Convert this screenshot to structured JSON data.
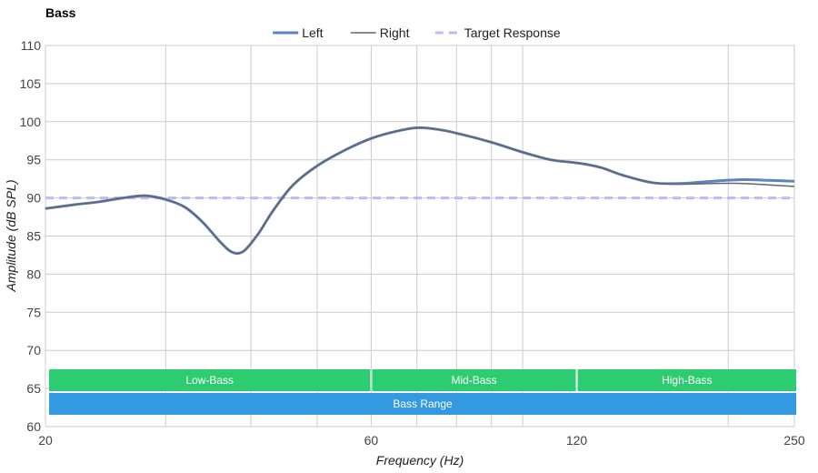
{
  "chart_data": {
    "type": "line",
    "title": "Bass",
    "xlabel": "Frequency (Hz)",
    "ylabel": "Amplitude (dB SPL)",
    "xscale": "log",
    "xlim": [
      20,
      250
    ],
    "ylim": [
      60,
      110
    ],
    "x_ticks": [
      20,
      60,
      120,
      250
    ],
    "y_ticks": [
      60,
      65,
      70,
      75,
      80,
      85,
      90,
      95,
      100,
      105,
      110
    ],
    "x_gridlines": [
      30,
      40,
      50,
      60,
      70,
      80,
      90,
      100,
      200
    ],
    "legend_position": "top-center",
    "series": [
      {
        "name": "Left",
        "color": "#5b84c4",
        "style": "solid-thick",
        "points": [
          [
            20,
            88.6
          ],
          [
            22,
            89.1
          ],
          [
            24,
            89.5
          ],
          [
            26,
            90.0
          ],
          [
            28,
            90.3
          ],
          [
            30,
            89.8
          ],
          [
            32,
            88.8
          ],
          [
            34,
            86.8
          ],
          [
            36,
            84.3
          ],
          [
            37.5,
            82.9
          ],
          [
            39,
            83.0
          ],
          [
            41,
            85.3
          ],
          [
            43,
            88.2
          ],
          [
            46,
            91.6
          ],
          [
            50,
            94.2
          ],
          [
            55,
            96.3
          ],
          [
            60,
            97.8
          ],
          [
            65,
            98.7
          ],
          [
            70,
            99.2
          ],
          [
            75,
            99.0
          ],
          [
            80,
            98.5
          ],
          [
            90,
            97.3
          ],
          [
            100,
            96.0
          ],
          [
            110,
            95.0
          ],
          [
            120,
            94.6
          ],
          [
            130,
            94.0
          ],
          [
            140,
            93.0
          ],
          [
            155,
            92.0
          ],
          [
            170,
            91.9
          ],
          [
            190,
            92.2
          ],
          [
            210,
            92.4
          ],
          [
            230,
            92.3
          ],
          [
            250,
            92.2
          ]
        ]
      },
      {
        "name": "Right",
        "color": "#666666",
        "style": "solid-thin",
        "points": [
          [
            20,
            88.6
          ],
          [
            22,
            89.1
          ],
          [
            24,
            89.5
          ],
          [
            26,
            90.0
          ],
          [
            28,
            90.3
          ],
          [
            30,
            89.8
          ],
          [
            32,
            88.8
          ],
          [
            34,
            86.8
          ],
          [
            36,
            84.3
          ],
          [
            37.5,
            82.9
          ],
          [
            39,
            83.0
          ],
          [
            41,
            85.3
          ],
          [
            43,
            88.2
          ],
          [
            46,
            91.6
          ],
          [
            50,
            94.2
          ],
          [
            55,
            96.3
          ],
          [
            60,
            97.8
          ],
          [
            65,
            98.7
          ],
          [
            70,
            99.2
          ],
          [
            75,
            99.0
          ],
          [
            80,
            98.5
          ],
          [
            90,
            97.3
          ],
          [
            100,
            96.0
          ],
          [
            110,
            95.0
          ],
          [
            120,
            94.6
          ],
          [
            130,
            94.0
          ],
          [
            140,
            93.0
          ],
          [
            155,
            92.0
          ],
          [
            170,
            91.8
          ],
          [
            190,
            91.9
          ],
          [
            210,
            91.9
          ],
          [
            230,
            91.7
          ],
          [
            250,
            91.5
          ]
        ]
      },
      {
        "name": "Target Response",
        "color": "#bbbbf7",
        "style": "dashed",
        "points": [
          [
            20,
            90
          ],
          [
            250,
            90
          ]
        ]
      }
    ],
    "bands": [
      {
        "label": "Low-Bass",
        "from": 20,
        "to": 60,
        "color": "#2ecc71",
        "row": 1
      },
      {
        "label": "Mid-Bass",
        "from": 60,
        "to": 120,
        "color": "#2ecc71",
        "row": 1
      },
      {
        "label": "High-Bass",
        "from": 120,
        "to": 250,
        "color": "#2ecc71",
        "row": 1
      },
      {
        "label": "Bass Range",
        "from": 20,
        "to": 250,
        "color": "#3399e0",
        "row": 2
      }
    ]
  }
}
